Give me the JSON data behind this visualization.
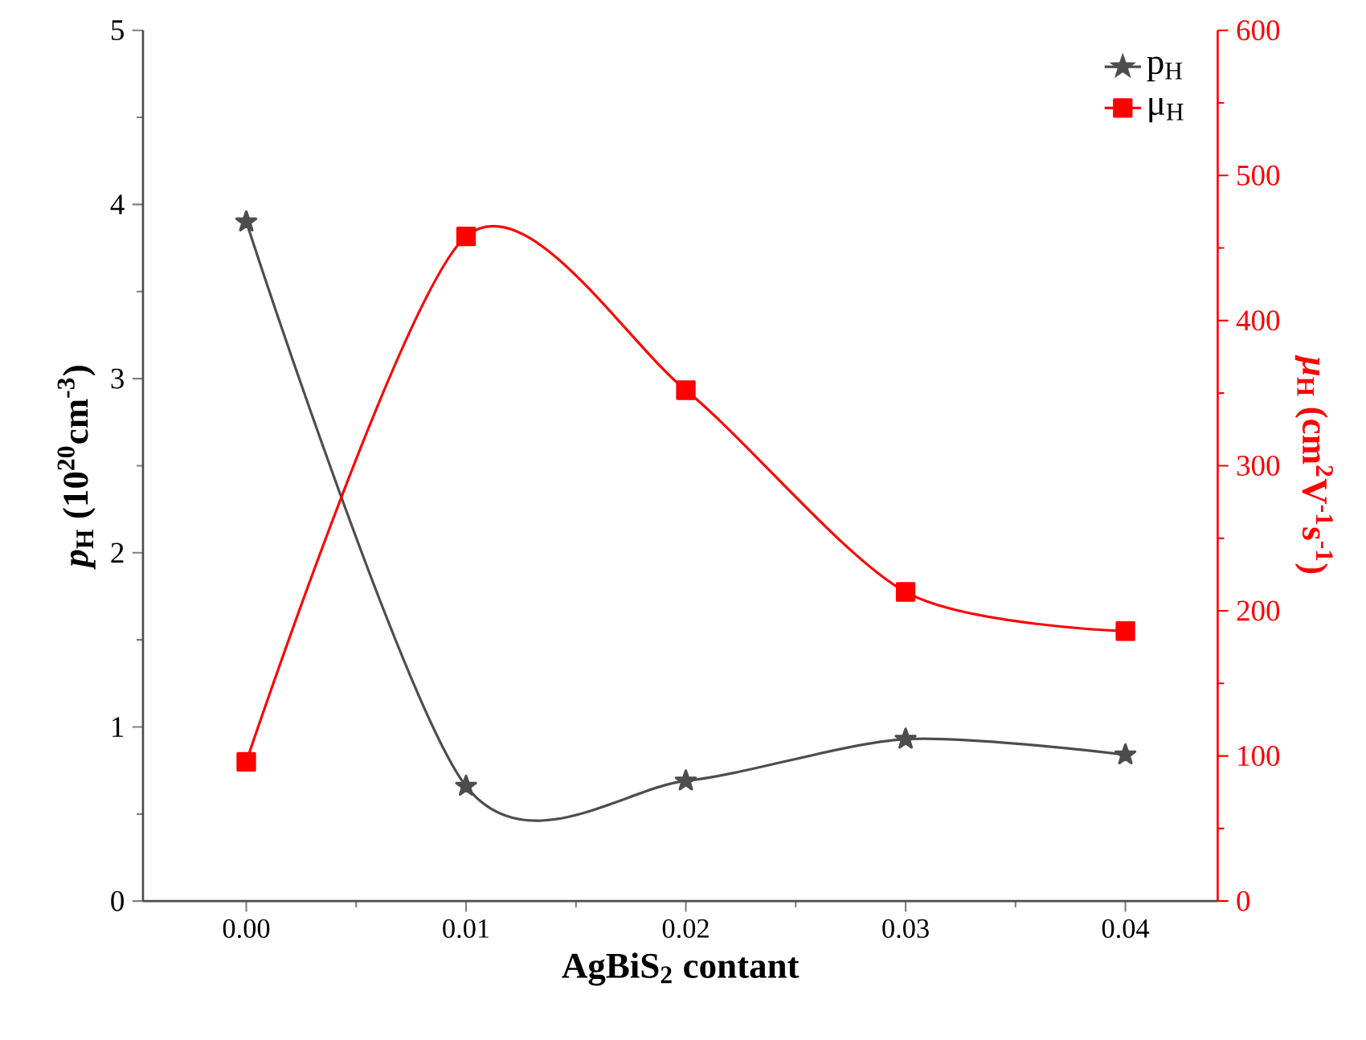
{
  "chart_data": {
    "type": "line",
    "xlabel": "AgBiS$_{2}$ contant",
    "ylabel": "*p*$_{H}$ (10$^{20}$cm$^{-3}$)",
    "y2label": "*μ*$_{H}$ (cm$^{2}$V$^{-1}$s$^{-1}$)",
    "x": [
      0.0,
      0.01,
      0.02,
      0.03,
      0.04
    ],
    "series": [
      {
        "name": "p$_{H}$",
        "color": "#4d4d4d",
        "marker": "star",
        "values": [
          3.9,
          0.66,
          0.69,
          0.93,
          0.84
        ]
      },
      {
        "name": "μ$_{H}$",
        "color": "#ff0000",
        "marker": "square",
        "axis": "y2",
        "values": [
          96,
          458,
          352,
          213,
          186
        ]
      }
    ],
    "xlim": [
      -0.0047,
      0.0442
    ],
    "xticks": [
      {
        "value": 0.0,
        "label": "0.00"
      },
      {
        "value": 0.01,
        "label": "0.01"
      },
      {
        "value": 0.02,
        "label": "0.02"
      },
      {
        "value": 0.03,
        "label": "0.03"
      },
      {
        "value": 0.04,
        "label": "0.04"
      }
    ],
    "ylim": [
      0,
      5
    ],
    "yticks": [
      0,
      1,
      2,
      3,
      4,
      5
    ],
    "y2lim": [
      0,
      600
    ],
    "y2ticks": [
      0,
      100,
      200,
      300,
      400,
      500,
      600
    ],
    "line_style": "solid",
    "legend": "top right",
    "grid": false
  }
}
